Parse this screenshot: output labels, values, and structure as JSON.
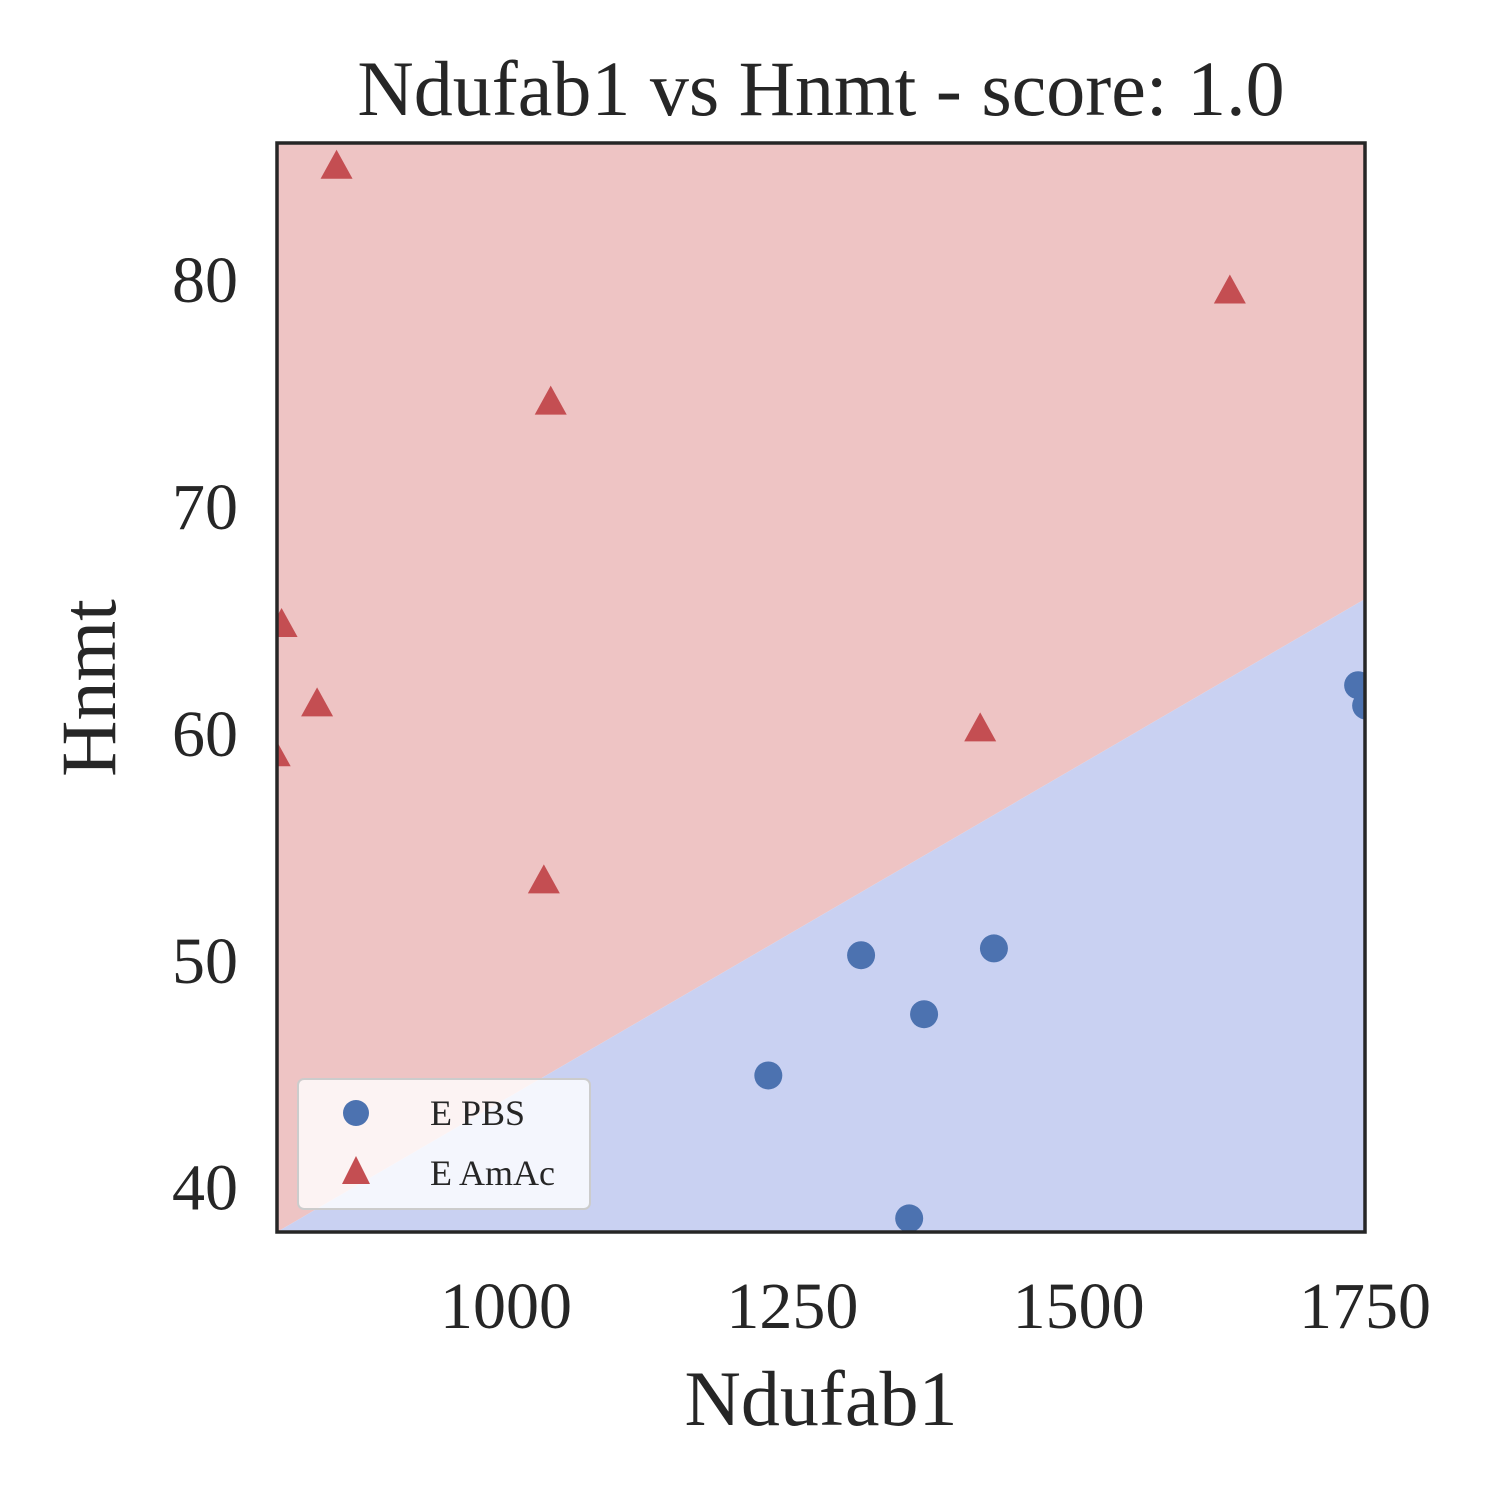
{
  "chart_data": {
    "type": "scatter",
    "title": "Ndufab1 vs Hnmt - score: 1.0",
    "xlabel": "Ndufab1",
    "ylabel": "Hnmt",
    "xlim": [
      800,
      1750
    ],
    "ylim": [
      38,
      86
    ],
    "xticks": [
      1000,
      1250,
      1500,
      1750
    ],
    "yticks": [
      40,
      50,
      60,
      70,
      80
    ],
    "grid": false,
    "legend_position": "lower-left",
    "decision_boundary": {
      "x": [
        800,
        1750
      ],
      "y": [
        38.0,
        65.9
      ],
      "above_label": "E AmAc",
      "below_label": "E PBS",
      "above_color": "#eec4c4",
      "below_color": "#c9d1f2"
    },
    "series": [
      {
        "name": "E PBS",
        "marker": "circle",
        "color": "#4c72b0",
        "points": [
          {
            "x": 1229,
            "y": 44.9
          },
          {
            "x": 1310,
            "y": 50.2
          },
          {
            "x": 1365,
            "y": 47.6
          },
          {
            "x": 1426,
            "y": 50.5
          },
          {
            "x": 1352,
            "y": 38.6
          },
          {
            "x": 1744,
            "y": 62.1
          },
          {
            "x": 1751,
            "y": 61.2
          }
        ]
      },
      {
        "name": "E AmAc",
        "marker": "triangle",
        "color": "#c44e52",
        "points": [
          {
            "x": 852,
            "y": 85.0
          },
          {
            "x": 1039,
            "y": 74.6
          },
          {
            "x": 1632,
            "y": 79.5
          },
          {
            "x": 804,
            "y": 64.8
          },
          {
            "x": 835,
            "y": 61.3
          },
          {
            "x": 798,
            "y": 59.1
          },
          {
            "x": 1414,
            "y": 60.2
          },
          {
            "x": 1033,
            "y": 53.5
          }
        ]
      }
    ]
  }
}
